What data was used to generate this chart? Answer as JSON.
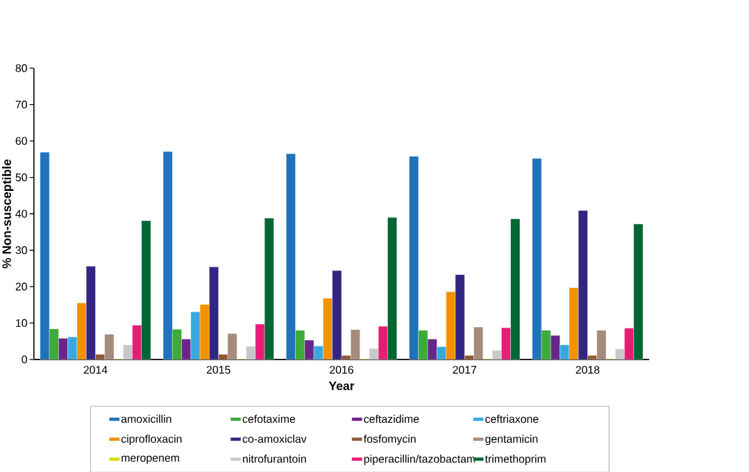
{
  "chart_data": {
    "type": "bar",
    "xlabel": "Year",
    "ylabel": "% Non-susceptible",
    "categories": [
      "2014",
      "2015",
      "2016",
      "2017",
      "2018"
    ],
    "ylim": [
      0,
      80
    ],
    "yticks": [
      0,
      10,
      20,
      30,
      40,
      50,
      60,
      70,
      80
    ],
    "grid": false,
    "legend": "bottom",
    "series": [
      {
        "name": "amoxicillin",
        "color": "#1f72bb",
        "values": [
          56.9,
          57.1,
          56.5,
          55.8,
          55.2
        ]
      },
      {
        "name": "cefotaxime",
        "color": "#3dab37",
        "values": [
          8.4,
          8.3,
          8.0,
          8.0,
          8.0
        ]
      },
      {
        "name": "ceftazidime",
        "color": "#68268a",
        "values": [
          5.8,
          5.6,
          5.3,
          5.6,
          6.6
        ]
      },
      {
        "name": "ceftriaxone",
        "color": "#38a9e0",
        "values": [
          6.2,
          13.1,
          3.7,
          3.5,
          4.0
        ]
      },
      {
        "name": "ciprofloxacin",
        "color": "#f29200",
        "values": [
          15.5,
          15.1,
          16.8,
          18.6,
          19.7
        ]
      },
      {
        "name": "co-amoxiclav",
        "color": "#332683",
        "values": [
          25.6,
          25.4,
          24.4,
          23.3,
          40.9
        ]
      },
      {
        "name": "fosfomycin",
        "color": "#8f5a35",
        "values": [
          1.4,
          1.4,
          1.1,
          1.1,
          1.1
        ]
      },
      {
        "name": "gentamicin",
        "color": "#a58b7b",
        "values": [
          6.9,
          7.1,
          8.2,
          8.9,
          8.0
        ]
      },
      {
        "name": "meropenem",
        "color": "#dede00",
        "values": [
          0.1,
          0.1,
          0.1,
          0.1,
          0.1
        ]
      },
      {
        "name": "nitrofurantoin",
        "color": "#c8c8c8",
        "values": [
          4.0,
          3.6,
          3.0,
          2.5,
          2.9
        ]
      },
      {
        "name": "piperacillin/tazobactam",
        "color": "#e61d75",
        "values": [
          9.4,
          9.7,
          9.1,
          8.7,
          8.6
        ]
      },
      {
        "name": "trimethoprim",
        "color": "#006633",
        "values": [
          38.1,
          38.8,
          39.0,
          38.6,
          37.2
        ]
      }
    ]
  }
}
